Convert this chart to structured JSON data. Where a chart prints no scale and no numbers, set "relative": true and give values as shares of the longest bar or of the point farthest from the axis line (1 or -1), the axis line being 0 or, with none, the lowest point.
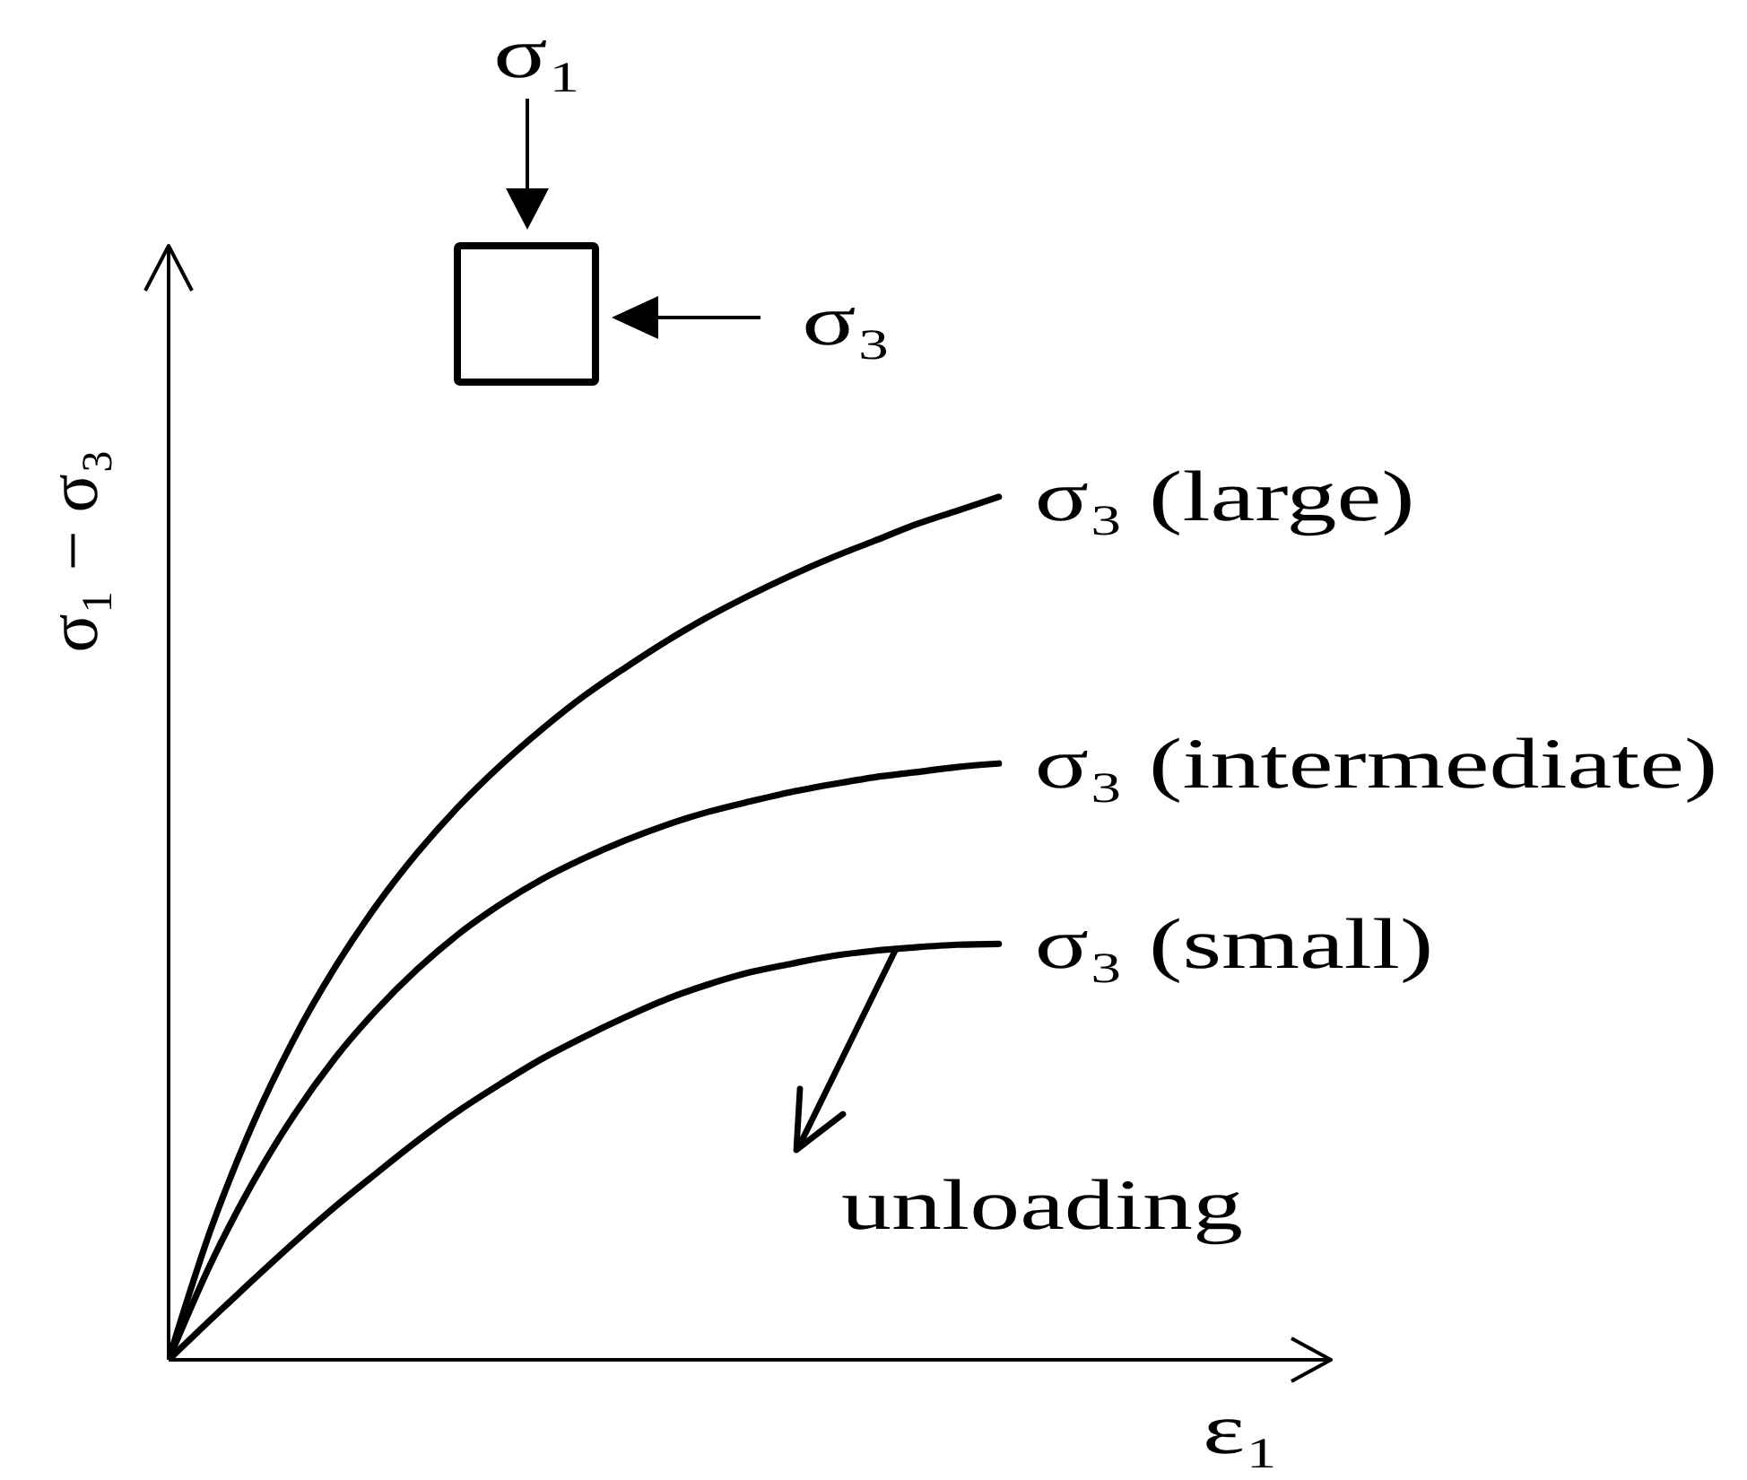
{
  "chart_data": {
    "type": "line",
    "xlabel": "ε₁",
    "ylabel": "σ₁ − σ₃",
    "relative": true,
    "tick_labels": false,
    "line_style": "solid",
    "categories": [
      null,
      null,
      null,
      null,
      null,
      null,
      null,
      null,
      null,
      null,
      null,
      null,
      null,
      null,
      null,
      null,
      null,
      null,
      null,
      null,
      null,
      null,
      null,
      null,
      null,
      null,
      null,
      null,
      null
    ],
    "series": [
      {
        "name": "σ₃ (large)",
        "color": "#000000",
        "values": [
          0,
          0.149,
          0.27,
          0.37,
          0.454,
          0.526,
          0.588,
          0.642,
          0.689,
          0.731,
          0.769,
          0.802,
          0.833,
          0.861,
          0.886,
          0.909,
          0.93,
          0.949,
          0.968,
          0.984,
          1,
          null,
          null,
          null,
          null,
          null,
          null,
          null,
          null
        ]
      },
      {
        "name": "σ₃ (intermediate)",
        "color": "#000000",
        "values": [
          0,
          0.11,
          0.203,
          0.282,
          0.349,
          0.405,
          0.453,
          0.494,
          0.528,
          0.557,
          0.581,
          0.602,
          0.62,
          0.635,
          0.647,
          0.658,
          0.667,
          0.675,
          0.681,
          0.687,
          0.691,
          null,
          null,
          null,
          null,
          null,
          null,
          null,
          null
        ]
      },
      {
        "name": "σ₃ (small)",
        "color": "#000000",
        "values": [
          0,
          0.046,
          0.091,
          0.135,
          0.177,
          0.216,
          0.254,
          0.289,
          0.32,
          0.349,
          0.374,
          0.397,
          0.418,
          0.435,
          0.449,
          0.459,
          0.468,
          0.474,
          0.478,
          0.481,
          0.482,
          null,
          null,
          null,
          null,
          null,
          null,
          null,
          null
        ]
      }
    ],
    "annotations": [
      "σ₁",
      "σ₃",
      "unloading"
    ]
  }
}
